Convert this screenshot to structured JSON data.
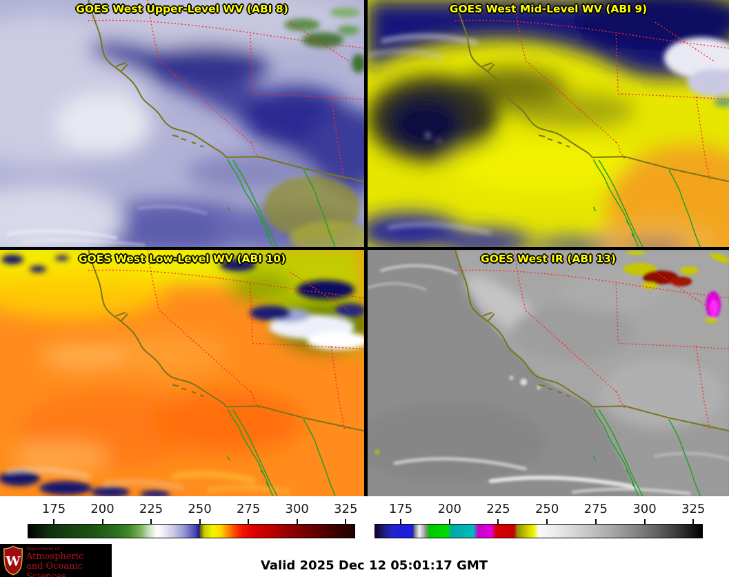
{
  "panels": [
    {
      "id": "upper",
      "title": "GOES West Upper-Level WV (ABI 8)"
    },
    {
      "id": "mid",
      "title": "GOES West Mid-Level WV (ABI 9)"
    },
    {
      "id": "low",
      "title": "GOES West Low-Level WV (ABI 10)"
    },
    {
      "id": "ir",
      "title": "GOES West IR (ABI 13)"
    }
  ],
  "colorbars": [
    {
      "name": "wv-enhancement-colorbar",
      "ticks": [
        "175",
        "200",
        "225",
        "250",
        "275",
        "300",
        "325"
      ],
      "tick_start_pct": 8.0,
      "tick_step_pct": 14.85,
      "stops": [
        "#000300 0%",
        "#102d0e 6%",
        "#153f10 12%",
        "#1f5415 20%",
        "#2c6f1c 27%",
        "#448a2a 31%",
        "#7db35f 34.5%",
        "#c8dfc0 37%",
        "#ffffff 39.5%",
        "#ececf5 41.5%",
        "#c9c9e6 44.5%",
        "#9b9bd4 47.5%",
        "#6464bf 50%",
        "#3a3aae 51.6%",
        "#18188c 52.3%",
        "#6e6e00 52.8%",
        "#c8c800 54%",
        "#f4f400 56.5%",
        "#ffd800 59%",
        "#ff9100 61%",
        "#ff4e00 63%",
        "#f31400 65.5%",
        "#dc0000 69%",
        "#c00000 74%",
        "#9c0000 79%",
        "#7a0000 84%",
        "#560000 90%",
        "#360000 95%",
        "#200000 100%"
      ]
    },
    {
      "name": "ir-enhancement-colorbar",
      "ticks": [
        "175",
        "200",
        "225",
        "250",
        "275",
        "300",
        "325"
      ],
      "tick_start_pct": 8.0,
      "tick_step_pct": 14.85,
      "stops": [
        "#14002e 0%",
        "#1c1c7a 2.5%",
        "#2424c4 5%",
        "#1d1dde 8%",
        "#1d1dde 11.5%",
        "#777777 12%",
        "#f0f0f0 13.5%",
        "#8f8f8f 15.5%",
        "#00c400 16.5%",
        "#00dc00 22%",
        "#00a8a8 23.5%",
        "#00bcbc 30%",
        "#c800c8 31.5%",
        "#e000e0 35.5%",
        "#d80000 37%",
        "#c80000 42.5%",
        "#8f8f00 43.5%",
        "#d8d800 47%",
        "#f0f000 48.5%",
        "#fafafa 50%",
        "#ebebeb 55%",
        "#d2d2d2 62%",
        "#b2b2b2 70%",
        "#8d8d8d 78%",
        "#636363 86%",
        "#353535 93%",
        "#000000 100%"
      ]
    }
  ],
  "footer": {
    "valid_label": "Valid 2025 Dec 12 05:01:17 GMT",
    "logo": {
      "dept": "Department of",
      "line1": "Atmospheric",
      "line2": "and Oceanic Sciences",
      "monogram": "W"
    }
  },
  "colors": {
    "title_text": "#ffff00",
    "state_border_red": "#ff2828",
    "coastline_olive": "#76761a",
    "mexico_outline_green": "#22a022",
    "logo_red": "#b5121d"
  }
}
